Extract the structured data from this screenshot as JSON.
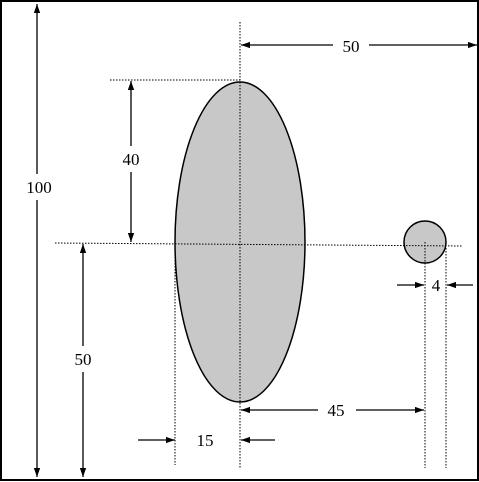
{
  "colors": {
    "frame": "#000000",
    "shape_fill": "#c8c8c8",
    "shape_stroke": "#000000",
    "background": "#ffffff"
  },
  "dimensions": {
    "total_height": "100",
    "center_to_right_edge": "50",
    "ellipse_half_height": "40",
    "center_height_from_bottom": "50",
    "ellipse_half_width": "15",
    "center_to_circle_distance": "45",
    "circle_diameter": "4"
  }
}
